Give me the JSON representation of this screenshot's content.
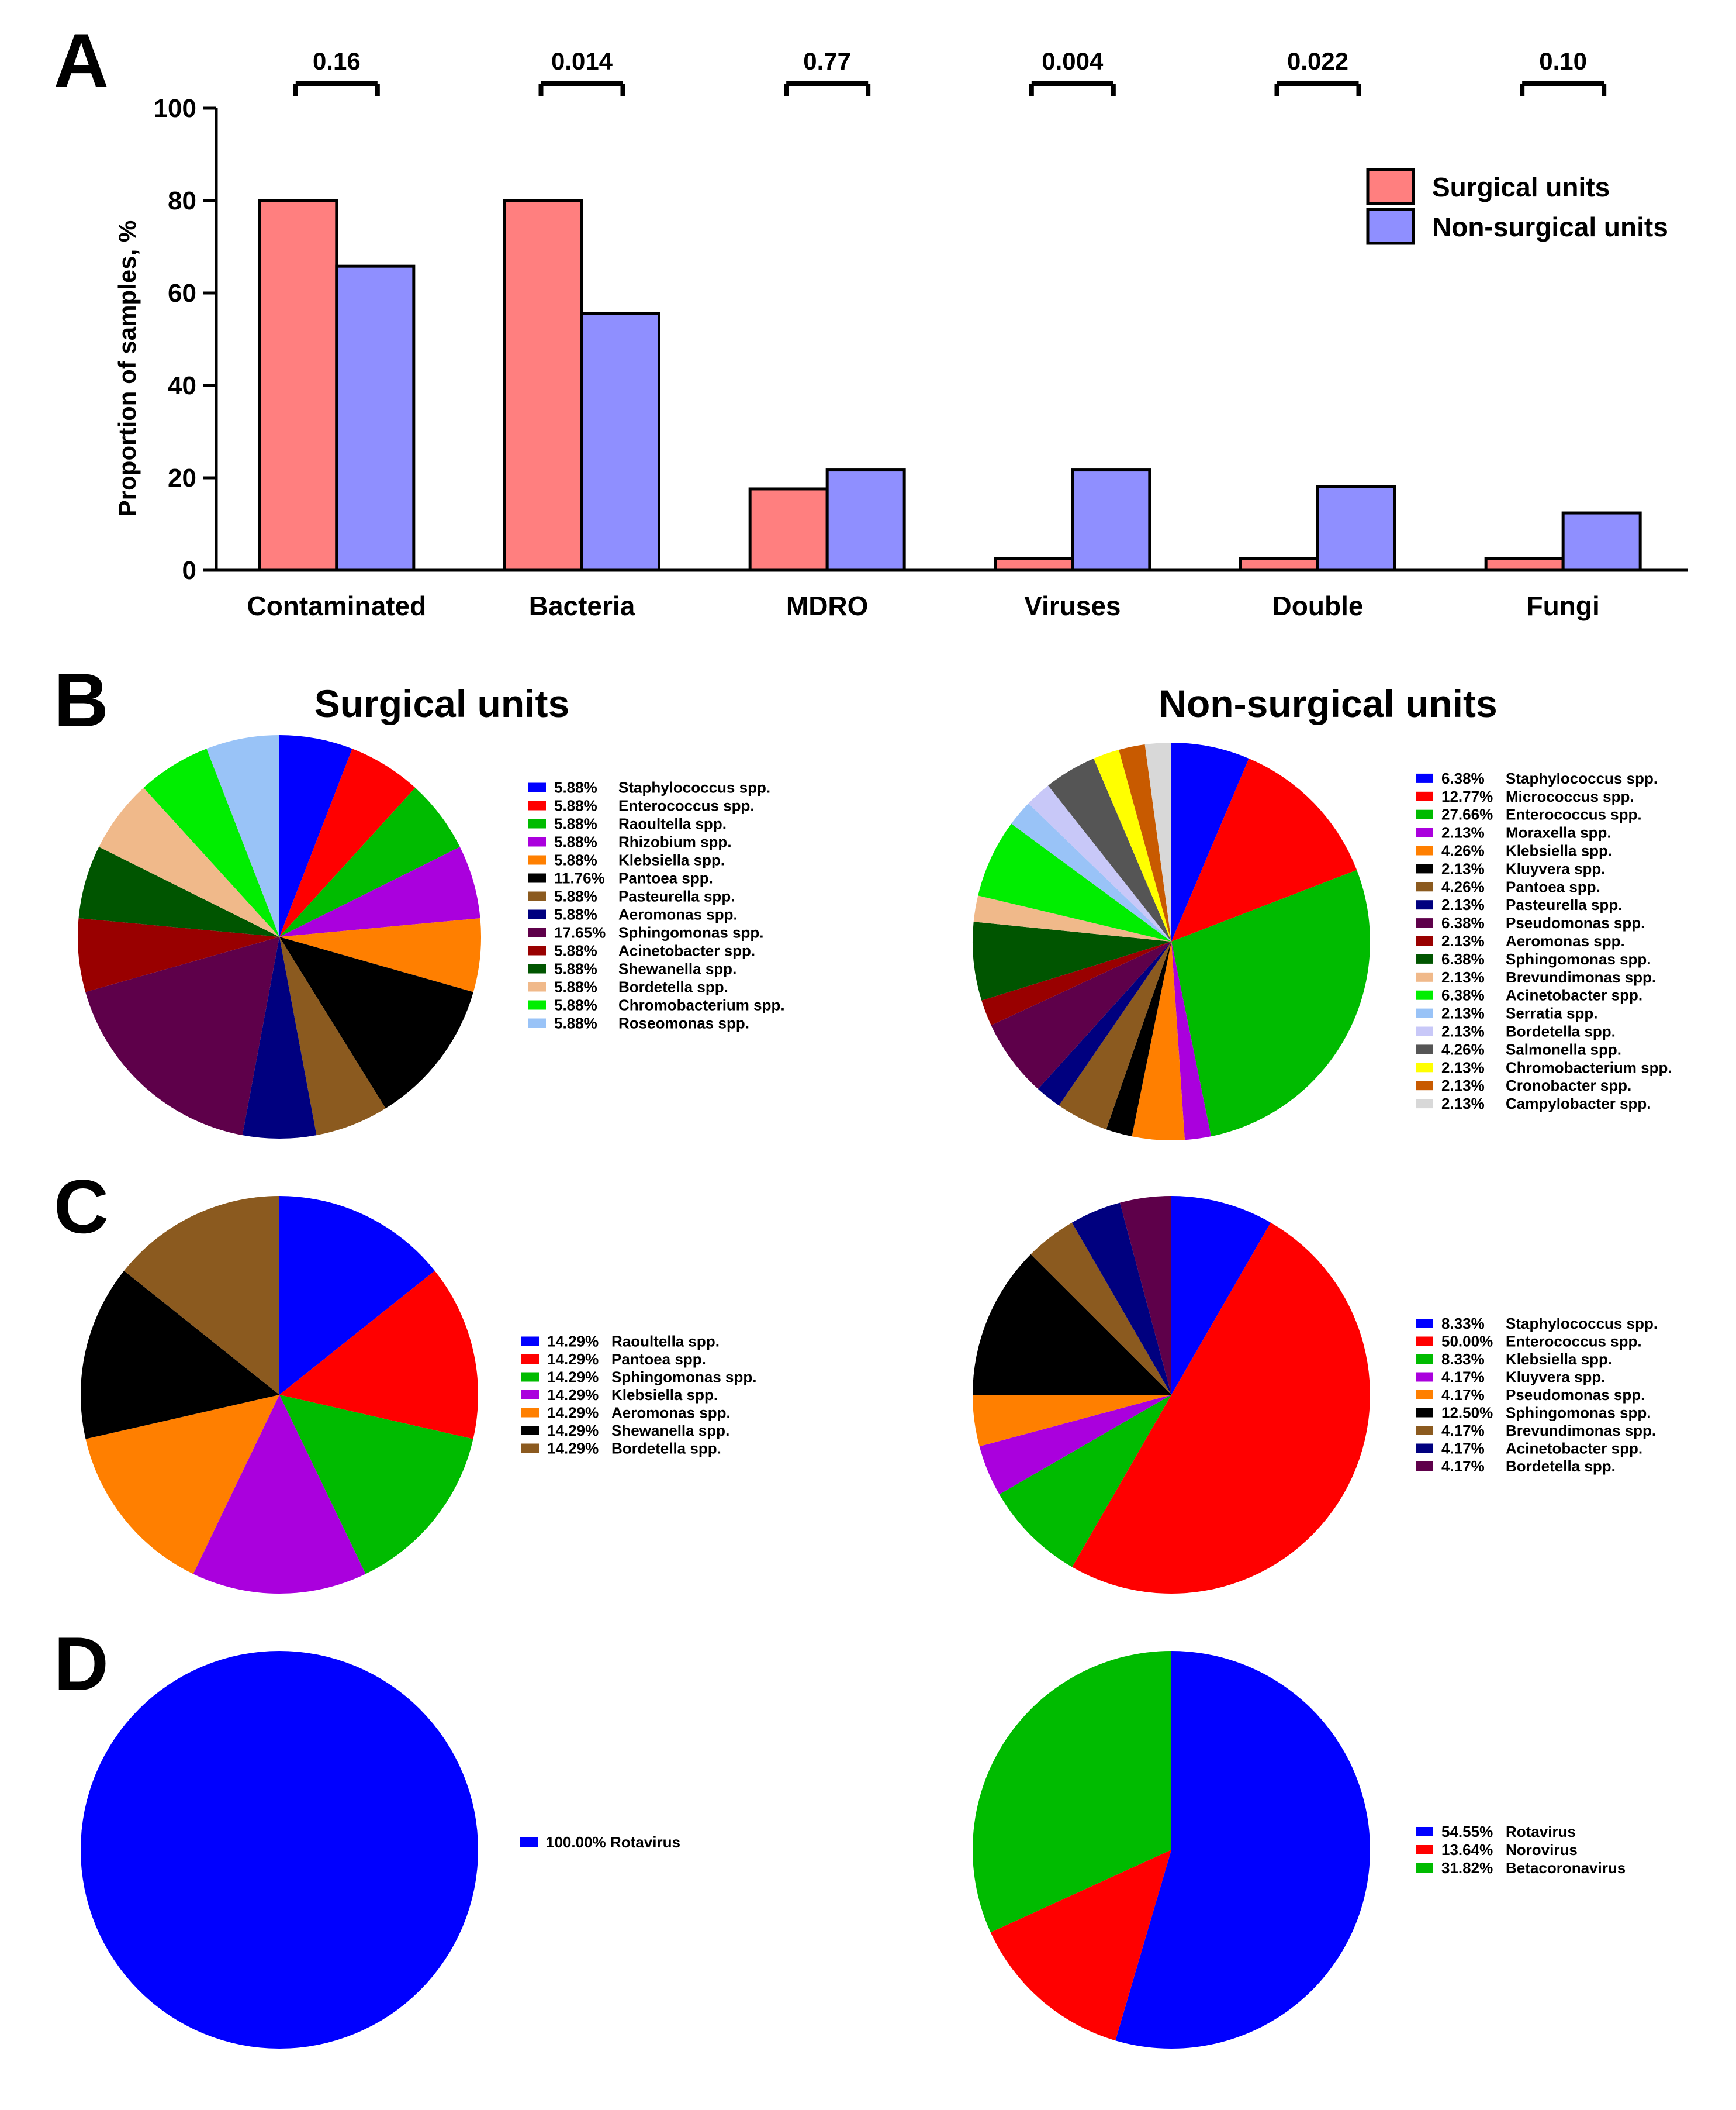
{
  "panel_letters": {
    "a": "A",
    "b": "B",
    "c": "C",
    "d": "D"
  },
  "colors": {
    "surgical": "#FF7F7F",
    "nonsurgical": "#8F8FFF"
  },
  "chart_data": [
    {
      "id": "A",
      "type": "bar",
      "title": "",
      "xlabel": "",
      "ylabel": "Proportion of samples, %",
      "ylim": [
        0,
        100
      ],
      "yticks": [
        0,
        20,
        40,
        60,
        80,
        100
      ],
      "ytick_labels": [
        "0",
        "20",
        "40",
        "60",
        "80",
        "100"
      ],
      "categories": [
        "Contaminated",
        "Bacteria",
        "MDRO",
        "Viruses",
        "Double",
        "Fungi"
      ],
      "series": [
        {
          "name": "Surgical units",
          "color": "#FF7F7F",
          "values": [
            80,
            80,
            17.6,
            2.5,
            2.5,
            2.5
          ]
        },
        {
          "name": "Non-surgical units",
          "color": "#8F8FFF",
          "values": [
            65.8,
            55.6,
            21.7,
            21.7,
            18.1,
            12.4
          ]
        }
      ],
      "p_values": [
        "0.16",
        "0.014",
        "0.77",
        "0.004",
        "0.022",
        "0.10"
      ],
      "legend": "top-right"
    },
    {
      "id": "B-surgical",
      "type": "pie",
      "title": "Surgical units",
      "labels": [
        "Staphylococcus spp.",
        "Enterococcus spp.",
        "Raoultella spp.",
        "Rhizobium spp.",
        "Klebsiella spp.",
        "Pantoea spp.",
        "Pasteurella spp.",
        "Aeromonas spp.",
        "Sphingomonas spp.",
        "Acinetobacter spp.",
        "Shewanella spp.",
        "Bordetella spp.",
        "Chromobacterium spp.",
        "Roseomonas spp."
      ],
      "values": [
        5.88,
        5.88,
        5.88,
        5.88,
        5.88,
        11.76,
        5.88,
        5.88,
        17.65,
        5.88,
        5.88,
        5.88,
        5.88,
        5.88
      ],
      "display": [
        "5.88%",
        "5.88%",
        "5.88%",
        "5.88%",
        "5.88%",
        "11.76%",
        "5.88%",
        "5.88%",
        "17.65%",
        "5.88%",
        "5.88%",
        "5.88%",
        "5.88%",
        "5.88%"
      ],
      "colors": [
        "#0000FF",
        "#FF0000",
        "#00BB00",
        "#AA00DD",
        "#FF7F00",
        "#000000",
        "#8B5A1F",
        "#00007F",
        "#5E004A",
        "#990000",
        "#005500",
        "#F0B98A",
        "#00EE00",
        "#99C3F7"
      ]
    },
    {
      "id": "B-nonsurgical",
      "type": "pie",
      "title": "Non-surgical units",
      "labels": [
        "Staphylococcus spp.",
        "Micrococcus spp.",
        "Enterococcus spp.",
        "Moraxella spp.",
        "Klebsiella spp.",
        "Kluyvera spp.",
        "Pantoea spp.",
        "Pasteurella spp.",
        "Pseudomonas spp.",
        "Aeromonas spp.",
        "Sphingomonas spp.",
        "Brevundimonas spp.",
        "Acinetobacter spp.",
        "Serratia spp.",
        "Bordetella spp.",
        "Salmonella spp.",
        "Chromobacterium spp.",
        "Cronobacter spp.",
        "Campylobacter spp."
      ],
      "values": [
        6.38,
        12.77,
        27.66,
        2.13,
        4.26,
        2.13,
        4.26,
        2.13,
        6.38,
        2.13,
        6.38,
        2.13,
        6.38,
        2.13,
        2.13,
        4.26,
        2.13,
        2.13,
        2.13
      ],
      "display": [
        "6.38%",
        "12.77%",
        "27.66%",
        "2.13%",
        "4.26%",
        "2.13%",
        "4.26%",
        "2.13%",
        "6.38%",
        "2.13%",
        "6.38%",
        "2.13%",
        "6.38%",
        "2.13%",
        "2.13%",
        "4.26%",
        "2.13%",
        "2.13%",
        "2.13%"
      ],
      "colors": [
        "#0000FF",
        "#FF0000",
        "#00BB00",
        "#AA00DD",
        "#FF7F00",
        "#000000",
        "#8B5A1F",
        "#00007F",
        "#5E004A",
        "#990000",
        "#005500",
        "#F0B98A",
        "#00EE00",
        "#99C3F7",
        "#C8C8F8",
        "#555555",
        "#FFFF00",
        "#C85A00",
        "#D8D8D8"
      ]
    },
    {
      "id": "C-surgical",
      "type": "pie",
      "title": "",
      "labels": [
        "Raoultella spp.",
        "Pantoea spp.",
        "Sphingomonas spp.",
        "Klebsiella spp.",
        "Aeromonas spp.",
        "Shewanella spp.",
        "Bordetella spp."
      ],
      "values": [
        14.29,
        14.29,
        14.29,
        14.29,
        14.29,
        14.29,
        14.29
      ],
      "display": [
        "14.29%",
        "14.29%",
        "14.29%",
        "14.29%",
        "14.29%",
        "14.29%",
        "14.29%"
      ],
      "colors": [
        "#0000FF",
        "#FF0000",
        "#00BB00",
        "#AA00DD",
        "#FF7F00",
        "#000000",
        "#8B5A1F"
      ]
    },
    {
      "id": "C-nonsurgical",
      "type": "pie",
      "title": "",
      "labels": [
        "Staphylococcus spp.",
        "Enterococcus spp.",
        "Klebsiella spp.",
        "Kluyvera spp.",
        "Pseudomonas spp.",
        "Sphingomonas spp.",
        "Brevundimonas spp.",
        "Acinetobacter spp.",
        "Bordetella spp."
      ],
      "values": [
        8.33,
        50.0,
        8.33,
        4.17,
        4.17,
        12.5,
        4.17,
        4.17,
        4.17
      ],
      "display": [
        "8.33%",
        "50.00%",
        "8.33%",
        "4.17%",
        "4.17%",
        "12.50%",
        "4.17%",
        "4.17%",
        "4.17%"
      ],
      "colors": [
        "#0000FF",
        "#FF0000",
        "#00BB00",
        "#AA00DD",
        "#FF7F00",
        "#000000",
        "#8B5A1F",
        "#00007F",
        "#5E004A"
      ]
    },
    {
      "id": "D-surgical",
      "type": "pie",
      "title": "",
      "labels": [
        "Rotavirus"
      ],
      "values": [
        100.0
      ],
      "display": [
        "100.00%"
      ],
      "colors": [
        "#0000FF"
      ]
    },
    {
      "id": "D-nonsurgical",
      "type": "pie",
      "title": "",
      "labels": [
        "Rotavirus",
        "Norovirus",
        "Betacoronavirus"
      ],
      "values": [
        54.55,
        13.64,
        31.82
      ],
      "display": [
        "54.55%",
        "13.64%",
        "31.82%"
      ],
      "colors": [
        "#0000FF",
        "#FF0000",
        "#00BB00"
      ]
    }
  ]
}
